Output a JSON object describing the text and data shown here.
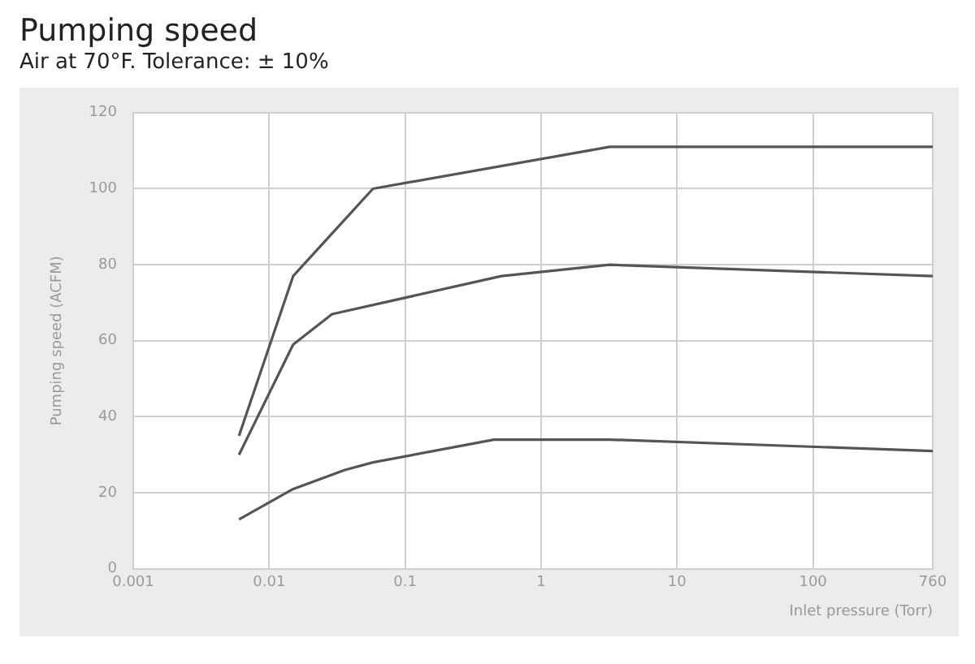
{
  "chart_data": {
    "type": "line",
    "title": "Pumping speed",
    "subtitle": "Air at 70°F. Tolerance: ± 10%",
    "xlabel": "Inlet pressure (Torr)",
    "ylabel": "Pumping speed (ACFM)",
    "series": [
      {
        "color": "#555555",
        "x": [
          0.006,
          0.015,
          0.058,
          3.2,
          760
        ],
        "values": [
          35,
          77,
          100,
          111,
          111
        ]
      },
      {
        "color": "#555555",
        "x": [
          0.006,
          0.015,
          0.029,
          0.51,
          3.2,
          760
        ],
        "values": [
          30,
          59,
          67,
          77,
          80,
          77
        ]
      },
      {
        "color": "#555555",
        "x": [
          0.006,
          0.015,
          0.036,
          0.058,
          0.45,
          3.2,
          760
        ],
        "values": [
          13,
          21,
          26,
          28,
          34,
          34,
          31
        ]
      }
    ],
    "log": "x",
    "xlim": [
      0.001,
      760
    ],
    "xticks": [
      0.001,
      0.01,
      0.1,
      1,
      10,
      100,
      760
    ],
    "ylim": [
      0,
      120
    ],
    "yticks": [
      0,
      20,
      40,
      60,
      80,
      100,
      120
    ],
    "grid": true,
    "legend": false,
    "marker": "none",
    "line_style": "solid"
  }
}
